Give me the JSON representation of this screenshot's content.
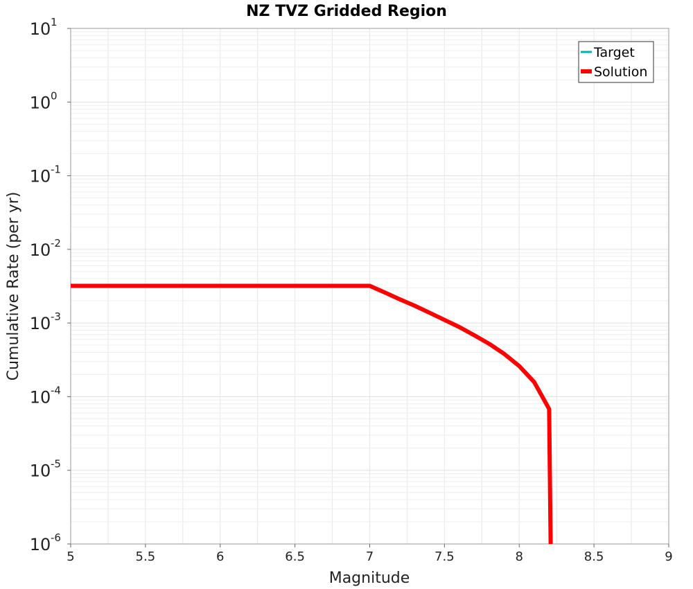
{
  "chart_data": {
    "type": "line",
    "title": "NZ TVZ Gridded Region",
    "xlabel": "Magnitude",
    "ylabel": "Cumulative Rate (per yr)",
    "xlim": [
      5,
      9
    ],
    "ylim": [
      1e-06,
      10
    ],
    "yscale": "log",
    "grid": true,
    "legend_position": "top-right",
    "x_ticks": [
      "5",
      "5.5",
      "6",
      "6.5",
      "7",
      "7.5",
      "8",
      "8.5",
      "9"
    ],
    "y_ticks": [
      {
        "base": "10",
        "exp": "1"
      },
      {
        "base": "10",
        "exp": "0"
      },
      {
        "base": "10",
        "exp": "-1"
      },
      {
        "base": "10",
        "exp": "-2"
      },
      {
        "base": "10",
        "exp": "-3"
      },
      {
        "base": "10",
        "exp": "-4"
      },
      {
        "base": "10",
        "exp": "-5"
      },
      {
        "base": "10",
        "exp": "-6"
      }
    ],
    "series": [
      {
        "name": "Target",
        "color": "#00b3b3",
        "x": [],
        "y": []
      },
      {
        "name": "Solution",
        "color": "#ff0000",
        "x": [
          5.0,
          7.0,
          7.1,
          7.2,
          7.3,
          7.4,
          7.5,
          7.6,
          7.7,
          7.8,
          7.9,
          8.0,
          8.1,
          8.2,
          8.21
        ],
        "y": [
          0.0032,
          0.0032,
          0.0026,
          0.0021,
          0.00172,
          0.00138,
          0.0011,
          0.00088,
          0.00068,
          0.00052,
          0.00038,
          0.00026,
          0.000158,
          6.8e-05,
          1e-06
        ]
      }
    ]
  }
}
